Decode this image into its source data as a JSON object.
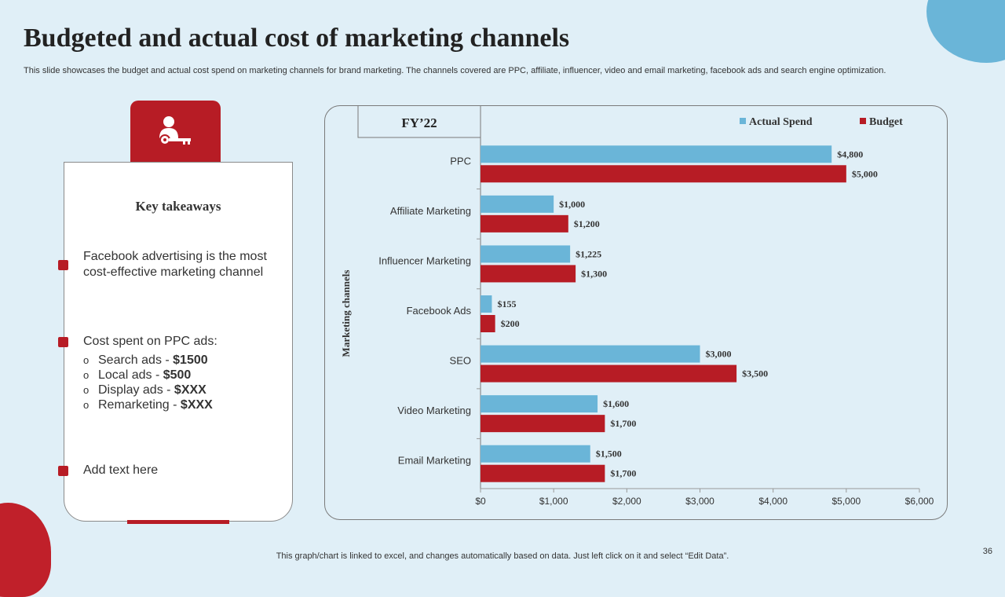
{
  "slide": {
    "title": "Budgeted and actual cost of marketing channels",
    "subtitle": "This slide showcases the budget and actual cost spend on marketing channels for brand marketing. The channels covered are PPC, affiliate, influencer, video and email marketing, facebook ads and search engine optimization.",
    "footer": "This graph/chart is linked to excel,  and changes automatically based on data. Just left click on it and select “Edit Data”.",
    "page_number": "36",
    "icon": "user-key-icon"
  },
  "takeaways": {
    "heading": "Key takeaways",
    "point1": "Facebook advertising is the most cost-effective marketing channel",
    "point2": "Cost spent on PPC ads:",
    "sub": [
      {
        "label": "Search ads - ",
        "value": "$1500"
      },
      {
        "label": "Local ads - ",
        "value": "$500"
      },
      {
        "label": "Display ads - ",
        "value": "$XXX"
      },
      {
        "label": "Remarketing - ",
        "value": "$XXX"
      }
    ],
    "point3": "Add text here"
  },
  "chart_data": {
    "type": "bar",
    "orientation": "horizontal",
    "title": "FY’22",
    "ylabel": "Marketing channels",
    "xlabel": "",
    "xlim": [
      0,
      6000
    ],
    "xticks": [
      "$0",
      "$1,000",
      "$2,000",
      "$3,000",
      "$4,000",
      "$5,000",
      "$6,000"
    ],
    "categories": [
      "PPC",
      "Affiliate Marketing",
      "Influencer Marketing",
      "Facebook Ads",
      "SEO",
      "Video Marketing",
      "Email Marketing"
    ],
    "series": [
      {
        "name": "Actual Spend",
        "color": "#6ab5d8",
        "values": [
          4800,
          1000,
          1225,
          155,
          3000,
          1600,
          1500
        ],
        "labels": [
          "$4,800",
          "$1,000",
          "$1,225",
          "$155",
          "$3,000",
          "$1,600",
          "$1,500"
        ]
      },
      {
        "name": "Budget",
        "color": "#b71c25",
        "values": [
          5000,
          1200,
          1300,
          200,
          3500,
          1700,
          1700
        ],
        "labels": [
          "$5,000",
          "$1,200",
          "$1,300",
          "$200",
          "$3,500",
          "$1,700",
          "$1,700"
        ]
      }
    ],
    "legend": "top-right"
  }
}
